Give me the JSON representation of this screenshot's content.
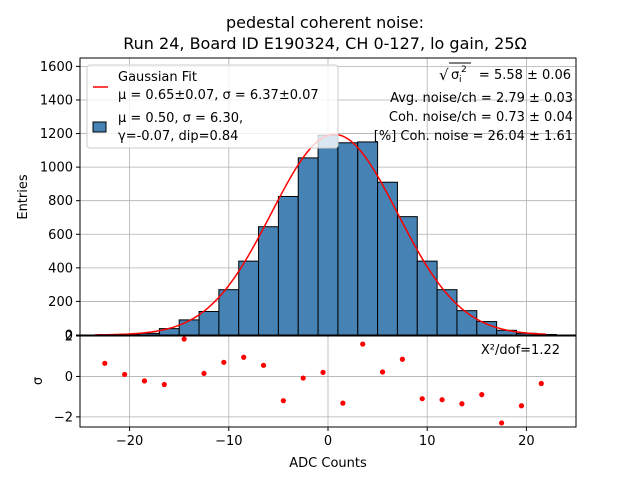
{
  "chart_data": [
    {
      "type": "bar",
      "title": [
        "pedestal coherent noise:",
        "Run 24, Board ID E190324, CH 0-127, lo gain, 25Ω"
      ],
      "xlabel": "",
      "ylabel": "Entries",
      "xlim": [
        -25,
        25
      ],
      "ylim": [
        0,
        1650
      ],
      "yticks": [
        0,
        200,
        400,
        600,
        800,
        1000,
        1200,
        1400,
        1600
      ],
      "xticks": [
        -20,
        -10,
        0,
        10,
        20
      ],
      "grid": true,
      "bin_width": 2,
      "bins_left": [
        -23,
        -21,
        -19,
        -17,
        -15,
        -13,
        -11,
        -9,
        -7,
        -5,
        -3,
        -1,
        1,
        3,
        5,
        7,
        9,
        11,
        13,
        15,
        17,
        19,
        21
      ],
      "values": [
        2,
        5,
        10,
        38,
        90,
        140,
        270,
        440,
        645,
        825,
        1055,
        1190,
        1145,
        1150,
        910,
        705,
        440,
        270,
        145,
        80,
        28,
        10,
        3
      ],
      "bar_color": "#4682b4",
      "fit": {
        "name": "Gaussian Fit",
        "color": "#ff0000",
        "mu": 0.65,
        "sigma": 6.37,
        "amplitude": 1195
      },
      "legend": {
        "placement": "upper left",
        "entries": [
          {
            "label_lines": [
              "Gaussian Fit",
              "μ = 0.65±0.07, σ = 6.37±0.07"
            ],
            "marker": "line",
            "color": "#ff0000"
          },
          {
            "label_lines": [
              "μ = 0.50, σ = 6.30,",
              "γ=-0.07, dip=0.84"
            ],
            "marker": "patch",
            "color": "#4682b4"
          }
        ]
      },
      "annotations": {
        "sqrt_prefix": "√",
        "sigma_symbol": "σ",
        "sigma_sub": "i",
        "sigma_sup": "2",
        "sqrt_value": "= 5.58 ± 0.06",
        "avg_noise": "Avg. noise/ch = 2.79 ± 0.03",
        "coh_noise": "Coh. noise/ch = 0.73 ± 0.04",
        "coh_pct": "[%] Coh. noise = 26.04  ± 1.61"
      }
    },
    {
      "type": "scatter",
      "xlabel": "ADC Counts",
      "ylabel": "σ",
      "xlim": [
        -25,
        25
      ],
      "ylim": [
        -2.5,
        2.0
      ],
      "yticks": [
        -2,
        0,
        2
      ],
      "xticks": [
        -20,
        -10,
        0,
        10,
        20
      ],
      "grid": true,
      "color": "#ff0000",
      "x": [
        -22.5,
        -20.5,
        -18.5,
        -16.5,
        -14.5,
        -12.5,
        -10.5,
        -8.5,
        -6.5,
        -4.5,
        -2.5,
        -0.5,
        1.5,
        3.5,
        5.5,
        7.5,
        9.5,
        11.5,
        13.5,
        15.5,
        17.5,
        19.5,
        21.5
      ],
      "y": [
        0.65,
        0.1,
        -0.22,
        -0.4,
        1.85,
        0.15,
        0.7,
        0.95,
        0.55,
        -1.2,
        -0.08,
        0.2,
        -1.32,
        1.6,
        0.22,
        0.85,
        -1.1,
        -1.15,
        -1.35,
        -0.9,
        -2.3,
        -1.45,
        -0.35
      ],
      "annotation": "X²/dof=1.22"
    }
  ]
}
